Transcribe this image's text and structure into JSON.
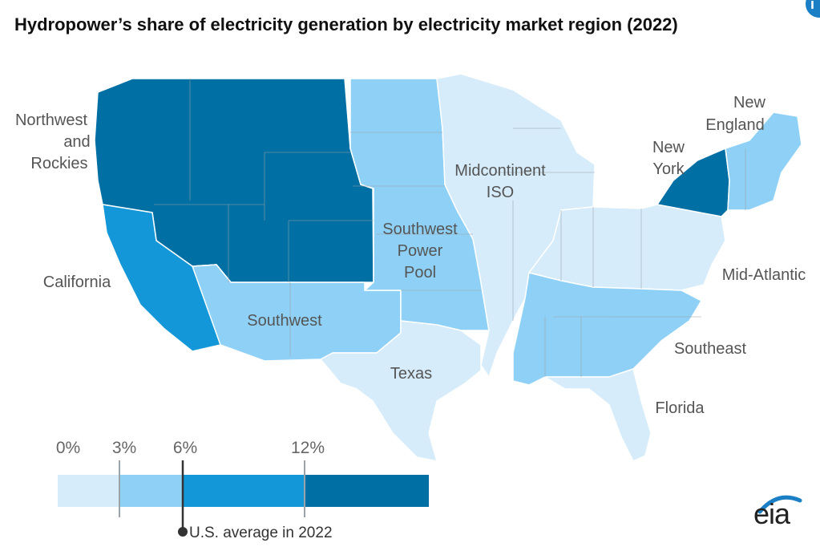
{
  "title": "Hydropower’s share of electricity generation by electricity market region (2022)",
  "colors": {
    "bin_0_3": "#d6ecfa",
    "bin_3_6": "#8fd1f6",
    "bin_6_12": "#1497d8",
    "bin_12_plus": "#006fa3",
    "border": "#9aa3aa",
    "marker": "#333333"
  },
  "regions": [
    {
      "key": "northwest_rockies",
      "label": [
        "Northwest",
        "and",
        "Rockies"
      ],
      "bin": "12%+"
    },
    {
      "key": "california",
      "label": [
        "California"
      ],
      "bin": "6–12%"
    },
    {
      "key": "southwest",
      "label": [
        "Southwest"
      ],
      "bin": "3–6%"
    },
    {
      "key": "spp",
      "label": [
        "Southwest",
        "Power",
        "Pool"
      ],
      "bin": "3–6%"
    },
    {
      "key": "miso",
      "label": [
        "Midcontinent",
        "ISO"
      ],
      "bin": "0–3%"
    },
    {
      "key": "texas",
      "label": [
        "Texas"
      ],
      "bin": "0–3%"
    },
    {
      "key": "new_york",
      "label": [
        "New",
        "York"
      ],
      "bin": "12%+"
    },
    {
      "key": "new_england",
      "label": [
        "New",
        "England"
      ],
      "bin": "3–6%"
    },
    {
      "key": "mid_atlantic",
      "label": [
        "Mid-Atlantic"
      ],
      "bin": "0–3%"
    },
    {
      "key": "southeast",
      "label": [
        "Southeast"
      ],
      "bin": "3–6%"
    },
    {
      "key": "florida",
      "label": [
        "Florida"
      ],
      "bin": "0–3%"
    }
  ],
  "legend": {
    "ticks": [
      "0%",
      "3%",
      "6%",
      "12%"
    ],
    "average_value": 6,
    "average_label": "U.S. average in 2022"
  },
  "logo_text": "eia",
  "badge_icon": "info-icon"
}
